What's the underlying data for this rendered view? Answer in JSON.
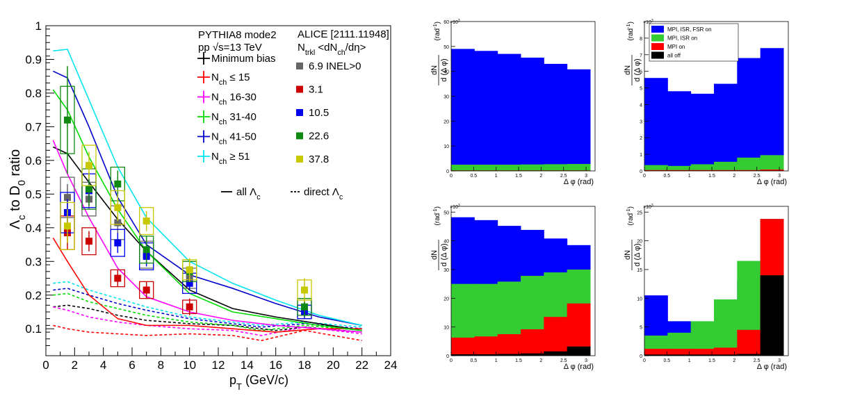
{
  "chart_data": [
    {
      "type": "line",
      "xlabel": "p",
      "xlabel_sub": "T",
      "xlabel_unit": "(GeV/c)",
      "ylabel": "Λ_c to D_0 ratio",
      "xlim": [
        0,
        24
      ],
      "ylim": [
        0.02,
        1.0
      ],
      "xticks": [
        0,
        2,
        4,
        6,
        8,
        10,
        12,
        14,
        16,
        18,
        20,
        22,
        24
      ],
      "yticks": [
        0.1,
        0.2,
        0.3,
        0.4,
        0.5,
        0.6,
        0.7,
        0.8,
        0.9,
        1
      ],
      "legend_pythia": {
        "title_line1": "PYTHIA8 mode2",
        "title_line2": "pp √s=13 TeV",
        "entries": [
          {
            "label": "Minimum bias",
            "color": "#000000"
          },
          {
            "label": "N",
            "sub": "ch",
            "rest": " ≤ 15",
            "color": "#ff0000"
          },
          {
            "label": "N",
            "sub": "ch",
            "rest": " 16-30",
            "color": "#ff00ff"
          },
          {
            "label": "N",
            "sub": "ch",
            "rest": " 31-40",
            "color": "#00dd00"
          },
          {
            "label": "N",
            "sub": "ch",
            "rest": " 41-50",
            "color": "#0000cc"
          },
          {
            "label": "N",
            "sub": "ch",
            "rest": " ≥ 51",
            "color": "#00e5ee"
          }
        ],
        "style_all": "all Λ",
        "style_all_sub": "c",
        "style_direct": "direct Λ",
        "style_direct_sub": "c"
      },
      "legend_alice": {
        "title": "ALICE [2111.11948]",
        "subtitle": "N",
        "subtitle_sub": "trkl",
        "subtitle_rest": " <dN",
        "subtitle_sub2": "ch",
        "subtitle_rest2": "/dη>",
        "entries": [
          {
            "label": "6.9 INEL>0",
            "color": "#666666"
          },
          {
            "label": "3.1",
            "color": "#cc0000"
          },
          {
            "label": "10.5",
            "color": "#0000ee"
          },
          {
            "label": "22.6",
            "color": "#118811"
          },
          {
            "label": "37.8",
            "color": "#c8c800"
          }
        ]
      },
      "series_all": [
        {
          "name": "Minimum bias",
          "color": "#000000",
          "x": [
            0.5,
            1.5,
            3,
            5,
            7,
            10,
            13,
            16,
            19,
            22
          ],
          "y": [
            0.64,
            0.62,
            0.535,
            0.425,
            0.33,
            0.215,
            0.16,
            0.135,
            0.115,
            0.095
          ]
        },
        {
          "name": "Nch ≤ 15",
          "color": "#ff0000",
          "x": [
            0.5,
            1.5,
            3,
            5,
            7,
            10,
            13,
            16,
            19,
            22
          ],
          "y": [
            0.37,
            0.3,
            0.2,
            0.13,
            0.11,
            0.11,
            0.1,
            0.09,
            0.1,
            0.1
          ]
        },
        {
          "name": "Nch 16-30",
          "color": "#ff00ff",
          "x": [
            0.5,
            1.5,
            3,
            5,
            7,
            10,
            13,
            16,
            19,
            22
          ],
          "y": [
            0.66,
            0.56,
            0.43,
            0.28,
            0.195,
            0.15,
            0.125,
            0.11,
            0.1,
            0.09
          ]
        },
        {
          "name": "Nch 31-40",
          "color": "#00dd00",
          "x": [
            0.5,
            1.5,
            3,
            5,
            7,
            10,
            13,
            16,
            19,
            22
          ],
          "y": [
            0.81,
            0.75,
            0.61,
            0.455,
            0.33,
            0.205,
            0.15,
            0.13,
            0.11,
            0.095
          ]
        },
        {
          "name": "Nch 41-50",
          "color": "#0000cc",
          "x": [
            0.5,
            1.5,
            3,
            5,
            7,
            10,
            13,
            16,
            19,
            22
          ],
          "y": [
            0.865,
            0.845,
            0.7,
            0.49,
            0.35,
            0.26,
            0.22,
            0.175,
            0.135,
            0.11
          ]
        },
        {
          "name": "Nch ≥ 51",
          "color": "#00e5ee",
          "x": [
            0.5,
            1.5,
            3,
            5,
            7,
            10,
            13,
            16,
            19,
            22
          ],
          "y": [
            0.925,
            0.93,
            0.78,
            0.58,
            0.43,
            0.3,
            0.235,
            0.185,
            0.14,
            0.11
          ]
        }
      ],
      "series_direct": [
        {
          "color": "#000000",
          "x": [
            0.5,
            1.5,
            3,
            5,
            7,
            10,
            13,
            16,
            18,
            22
          ],
          "y": [
            0.165,
            0.17,
            0.16,
            0.14,
            0.125,
            0.115,
            0.11,
            0.095,
            0.105,
            0.09
          ]
        },
        {
          "color": "#ff0000",
          "x": [
            0.5,
            1.5,
            3,
            5,
            7,
            10,
            13,
            15,
            18,
            22
          ],
          "y": [
            0.11,
            0.1,
            0.09,
            0.085,
            0.08,
            0.085,
            0.08,
            0.065,
            0.095,
            0.065
          ]
        },
        {
          "color": "#ff00ff",
          "x": [
            0.5,
            1.5,
            3,
            5,
            7,
            10,
            13,
            15,
            18,
            22
          ],
          "y": [
            0.165,
            0.155,
            0.135,
            0.12,
            0.11,
            0.1,
            0.095,
            0.08,
            0.105,
            0.085
          ]
        },
        {
          "color": "#00dd00",
          "x": [
            0.5,
            1.5,
            3,
            5,
            7,
            10,
            13,
            15,
            18,
            22
          ],
          "y": [
            0.2,
            0.205,
            0.18,
            0.16,
            0.14,
            0.12,
            0.11,
            0.095,
            0.11,
            0.095
          ]
        },
        {
          "color": "#0000cc",
          "x": [
            0.5,
            1.5,
            3,
            5,
            7,
            10,
            13,
            15,
            18,
            22
          ],
          "y": [
            0.215,
            0.22,
            0.2,
            0.175,
            0.155,
            0.13,
            0.115,
            0.105,
            0.115,
            0.1
          ]
        },
        {
          "color": "#00e5ee",
          "x": [
            0.5,
            1.5,
            3,
            5,
            7,
            10,
            13,
            15,
            18,
            22
          ],
          "y": [
            0.235,
            0.24,
            0.215,
            0.19,
            0.165,
            0.135,
            0.12,
            0.11,
            0.12,
            0.105
          ]
        }
      ],
      "alice_points": [
        {
          "name": "6.9 INEL>0",
          "color": "#666666",
          "x": [
            1.5,
            3,
            5,
            7,
            10,
            18
          ],
          "y": [
            0.49,
            0.485,
            0.415,
            0.32,
            0.25,
            0.16
          ],
          "err": [
            0.04,
            0.03,
            0.03,
            0.025,
            0.02,
            0.02
          ],
          "sys": [
            0.06,
            0.05,
            0.05,
            0.04,
            0.03,
            0.03
          ]
        },
        {
          "name": "3.1",
          "color": "#cc0000",
          "x": [
            1.5,
            3,
            5,
            7,
            10
          ],
          "y": [
            0.385,
            0.36,
            0.25,
            0.215,
            0.165
          ],
          "err": [
            0.05,
            0.03,
            0.025,
            0.025,
            0.025
          ],
          "sys": [
            0.05,
            0.04,
            0.025,
            0.025,
            0.02
          ]
        },
        {
          "name": "10.5",
          "color": "#0000ee",
          "x": [
            1.5,
            3,
            5,
            7,
            10,
            18
          ],
          "y": [
            0.445,
            0.51,
            0.355,
            0.315,
            0.235,
            0.15
          ],
          "err": [
            0.04,
            0.03,
            0.03,
            0.03,
            0.02,
            0.02
          ],
          "sys": [
            0.06,
            0.05,
            0.04,
            0.04,
            0.03,
            0.02
          ]
        },
        {
          "name": "22.6",
          "color": "#118811",
          "x": [
            1.5,
            3,
            5,
            7,
            10,
            18
          ],
          "y": [
            0.72,
            0.515,
            0.53,
            0.335,
            0.27,
            0.165
          ],
          "err": [
            0.16,
            0.05,
            0.04,
            0.04,
            0.03,
            0.03
          ],
          "sys": [
            0.1,
            0.06,
            0.05,
            0.04,
            0.03,
            0.025
          ]
        },
        {
          "name": "37.8",
          "color": "#c8c800",
          "x": [
            1.5,
            3,
            5,
            7,
            10,
            18
          ],
          "y": [
            0.405,
            0.585,
            0.46,
            0.42,
            0.275,
            0.215
          ],
          "err": [
            0.05,
            0.04,
            0.04,
            0.03,
            0.035,
            0.035
          ],
          "sys": [
            0.07,
            0.06,
            0.05,
            0.04,
            0.03,
            0.03
          ]
        }
      ]
    },
    {
      "type": "area",
      "panel": "top-left",
      "ylabel_num": "dN",
      "ylabel_den": "d (Δ φ)",
      "ylabel_unit": "(rad",
      "ylabel_unit_sup": "-1",
      "ylabel_unit_close": ")",
      "exponent": "×10",
      "exponent_sup": "3",
      "xlabel": "Δ φ (rad)",
      "xlim": [
        0,
        3.2
      ],
      "ylim": [
        0,
        60
      ],
      "yticks": [
        0,
        10,
        20,
        30,
        40,
        50,
        60
      ],
      "xticks": [
        "0",
        "0.5",
        "1",
        "1.5",
        "2",
        "2.5",
        "3"
      ],
      "series": [
        {
          "name": "MPI, ISR, FSR on",
          "color": "#0000ff",
          "values": [
            49,
            48.2,
            47,
            45.5,
            43,
            40.8
          ]
        },
        {
          "name": "MPI, ISR on",
          "color": "#33cc33",
          "values": [
            2.5,
            2.5,
            2.5,
            2.6,
            2.7,
            2.8
          ]
        },
        {
          "name": "MPI on",
          "color": "#ff0000",
          "values": [
            0.2,
            0.2,
            0.2,
            0.2,
            0.2,
            0.2
          ]
        },
        {
          "name": "all off",
          "color": "#000000",
          "values": [
            0.05,
            0.05,
            0.05,
            0.05,
            0.05,
            0.05
          ]
        }
      ]
    },
    {
      "type": "area",
      "panel": "top-right",
      "ylabel_num": "dN",
      "ylabel_den": "d (Δ φ)",
      "ylabel_unit": "(rad",
      "ylabel_unit_sup": "-1",
      "ylabel_unit_close": ")",
      "exponent": "×10",
      "exponent_sup": "3",
      "xlabel": "Δ φ (rad)",
      "xlim": [
        0,
        3.2
      ],
      "ylim": [
        0,
        9
      ],
      "yticks": [
        0,
        1,
        2,
        3,
        4,
        5,
        6,
        7,
        8
      ],
      "xticks": [
        "0",
        "0.5",
        "1",
        "1.5",
        "2",
        "2.5",
        "3"
      ],
      "legend": [
        "MPI, ISR, FSR on",
        "MPI, ISR on",
        "MPI on",
        "all off"
      ],
      "series": [
        {
          "name": "MPI, ISR, FSR on",
          "color": "#0000ff",
          "values": [
            5.6,
            4.8,
            4.65,
            5.25,
            6.8,
            7.4
          ]
        },
        {
          "name": "MPI, ISR on",
          "color": "#33cc33",
          "values": [
            0.35,
            0.3,
            0.4,
            0.55,
            0.8,
            0.95
          ]
        },
        {
          "name": "MPI on",
          "color": "#ff0000",
          "values": [
            0.05,
            0.05,
            0.05,
            0.05,
            0.05,
            0.08
          ]
        },
        {
          "name": "all off",
          "color": "#000000",
          "values": [
            0.01,
            0.01,
            0.01,
            0.01,
            0.01,
            0.02
          ]
        }
      ]
    },
    {
      "type": "area",
      "panel": "bottom-left",
      "ylabel_num": "dN",
      "ylabel_den": "d (Δ φ)",
      "ylabel_unit": "(rad",
      "ylabel_unit_sup": "-1",
      "ylabel_unit_close": ")",
      "exponent": "×10",
      "exponent_sup": "3",
      "xlabel": "Δ φ (rad)",
      "xlim": [
        0,
        3.2
      ],
      "ylim": [
        0,
        52
      ],
      "yticks": [
        0,
        10,
        20,
        30,
        40,
        50
      ],
      "xticks": [
        "0",
        "0.5",
        "1",
        "1.5",
        "2",
        "2.5",
        "3"
      ],
      "series": [
        {
          "name": "MPI, ISR, FSR on",
          "color": "#0000ff",
          "values": [
            48.2,
            47.2,
            45.2,
            43.8,
            40.8,
            38.5
          ]
        },
        {
          "name": "MPI, ISR on",
          "color": "#33cc33",
          "values": [
            25.0,
            25.0,
            25.8,
            27.8,
            29.0,
            30.0
          ]
        },
        {
          "name": "MPI on",
          "color": "#ff0000",
          "values": [
            6.3,
            6.7,
            7.5,
            9.2,
            13.5,
            18.2
          ]
        },
        {
          "name": "all off",
          "color": "#000000",
          "values": [
            0.5,
            0.5,
            0.6,
            0.8,
            1.5,
            3.2
          ]
        }
      ]
    },
    {
      "type": "area",
      "panel": "bottom-right",
      "ylabel_num": "dN",
      "ylabel_den": "d (Δ φ)",
      "ylabel_unit": "(rad",
      "ylabel_unit_sup": "-1",
      "ylabel_unit_close": ")",
      "exponent": "×10",
      "exponent_sup": "3",
      "xlabel": "Δ φ (rad)",
      "xlim": [
        0,
        3.2
      ],
      "ylim": [
        0,
        26
      ],
      "yticks": [
        0,
        5,
        10,
        15,
        20,
        25
      ],
      "xticks": [
        "0",
        "0.5",
        "1",
        "1.5",
        "2",
        "2.5",
        "3"
      ],
      "series": [
        {
          "name": "MPI, ISR, FSR on",
          "color": "#0000ff",
          "values": [
            10.5,
            6.0,
            5.2,
            9.0,
            13.0,
            23.8
          ]
        },
        {
          "name": "MPI, ISR on",
          "color": "#33cc33",
          "values": [
            3.5,
            4.0,
            6.0,
            9.8,
            16.5,
            23.8
          ]
        },
        {
          "name": "MPI on",
          "color": "#ff0000",
          "values": [
            1.2,
            1.2,
            1.2,
            1.4,
            4.5,
            23.8
          ]
        },
        {
          "name": "all off",
          "color": "#000000",
          "values": [
            0.2,
            0.2,
            0.2,
            0.2,
            0.3,
            14.0
          ]
        }
      ]
    }
  ]
}
